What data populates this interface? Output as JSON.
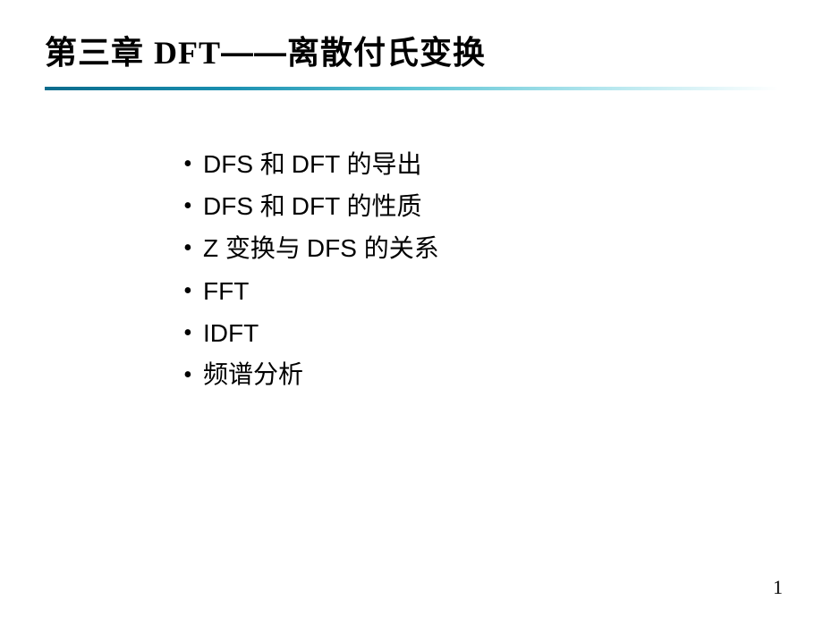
{
  "title": {
    "prefix": "第三章  ",
    "latin": "DFT",
    "suffix": "——离散付氏变换"
  },
  "bullets": [
    {
      "parts": [
        {
          "type": "latin",
          "text": "DFS "
        },
        {
          "type": "cjk",
          "text": "和 "
        },
        {
          "type": "latin",
          "text": "DFT "
        },
        {
          "type": "cjk",
          "text": "的导出"
        }
      ]
    },
    {
      "parts": [
        {
          "type": "latin",
          "text": "DFS "
        },
        {
          "type": "cjk",
          "text": "和 "
        },
        {
          "type": "latin",
          "text": "DFT "
        },
        {
          "type": "cjk",
          "text": "的性质"
        }
      ]
    },
    {
      "parts": [
        {
          "type": "latin",
          "text": "Z "
        },
        {
          "type": "cjk",
          "text": "变换与 "
        },
        {
          "type": "latin",
          "text": "DFS "
        },
        {
          "type": "cjk",
          "text": "的关系"
        }
      ]
    },
    {
      "parts": [
        {
          "type": "latin",
          "text": "FFT"
        }
      ]
    },
    {
      "parts": [
        {
          "type": "latin",
          "text": "IDFT"
        }
      ]
    },
    {
      "parts": [
        {
          "type": "cjk",
          "text": "频谱分析"
        }
      ]
    }
  ],
  "page_number": "1",
  "colors": {
    "background": "#ffffff",
    "text": "#000000",
    "divider_start": "#0a6b8c",
    "divider_end": "#ffffff"
  }
}
